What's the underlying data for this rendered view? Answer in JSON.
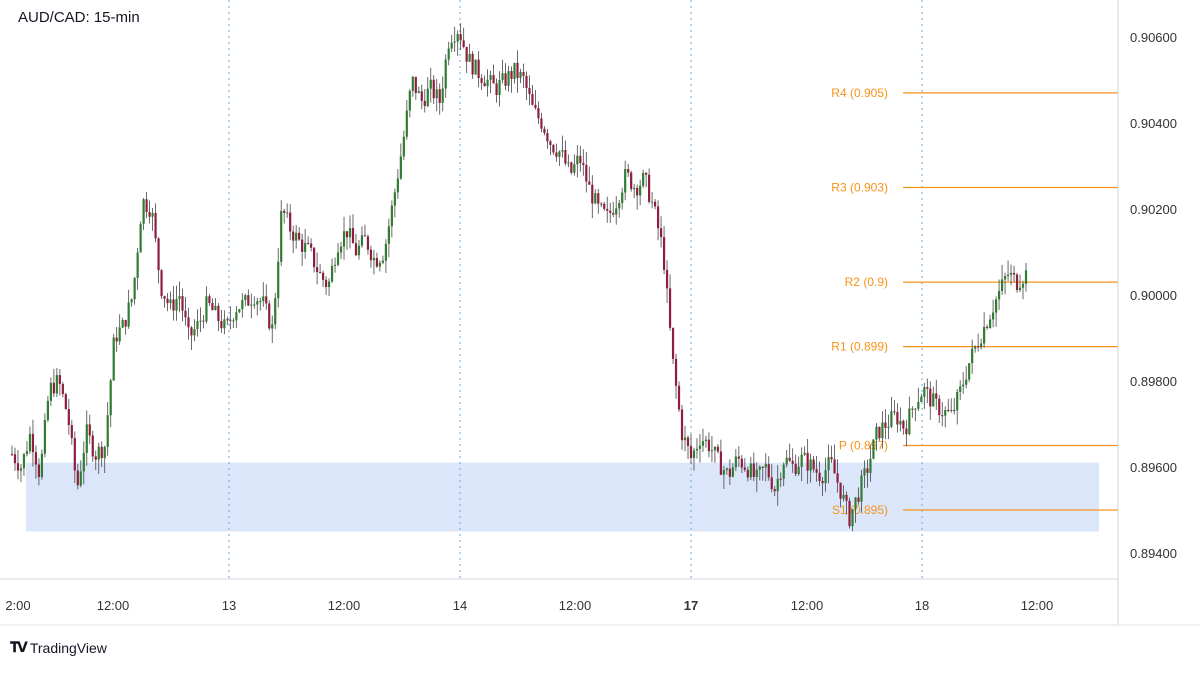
{
  "header": {
    "title": "AUD/CAD: 15-min"
  },
  "footer": {
    "brand": "TradingView"
  },
  "colors": {
    "level_line": "#f7931a",
    "level_label": "#f7931a",
    "support_zone": "#dce6fb",
    "candle_up": "#2e7d32",
    "candle_down": "#8e1f3c",
    "wick": "#444444",
    "day_separator": "#7fb6e6",
    "axis_text": "#333333"
  },
  "chart_data": {
    "type": "candlestick",
    "title": "AUD/CAD: 15-min",
    "ylim": [
      0.8935,
      0.9067
    ],
    "y_ticks": [
      "0.90600",
      "0.90400",
      "0.90200",
      "0.90000",
      "0.89800",
      "0.89600",
      "0.89400"
    ],
    "y_tick_values": [
      0.906,
      0.904,
      0.902,
      0.9,
      0.898,
      0.896,
      0.894
    ],
    "x_ticks": [
      {
        "label": "2:00",
        "bold": false
      },
      {
        "label": "12:00",
        "bold": false
      },
      {
        "label": "13",
        "bold": false
      },
      {
        "label": "12:00",
        "bold": false
      },
      {
        "label": "14",
        "bold": false
      },
      {
        "label": "12:00",
        "bold": false
      },
      {
        "label": "17",
        "bold": true
      },
      {
        "label": "12:00",
        "bold": false
      },
      {
        "label": "18",
        "bold": false
      },
      {
        "label": "12:00",
        "bold": false
      }
    ],
    "day_separators": [
      "13",
      "14",
      "17",
      "18"
    ],
    "levels": [
      {
        "label": "R4 (0.905)",
        "value": 0.9047
      },
      {
        "label": "R3 (0.903)",
        "value": 0.9025
      },
      {
        "label": "R2 (0.9)",
        "value": 0.9003
      },
      {
        "label": "R1 (0.899)",
        "value": 0.8988
      },
      {
        "label": "P (0.897)",
        "value": 0.8965
      },
      {
        "label": "S1 (0.895)",
        "value": 0.895
      }
    ],
    "support_zone": {
      "from": 0.8945,
      "to": 0.8961
    },
    "price_path": [
      0.8963,
      0.896,
      0.8968,
      0.8958,
      0.8978,
      0.898,
      0.8972,
      0.8955,
      0.8968,
      0.8963,
      0.8965,
      0.899,
      0.8993,
      0.9,
      0.9022,
      0.902,
      0.9002,
      0.8997,
      0.9,
      0.899,
      0.8993,
      0.8998,
      0.8995,
      0.8992,
      0.8997,
      0.8998,
      0.9,
      0.8998,
      0.8992,
      0.902,
      0.9015,
      0.9012,
      0.901,
      0.9005,
      0.9002,
      0.9012,
      0.9015,
      0.901,
      0.9013,
      0.9008,
      0.901,
      0.9022,
      0.9035,
      0.905,
      0.9045,
      0.9048,
      0.9045,
      0.906,
      0.9062,
      0.9055,
      0.9052,
      0.905,
      0.9048,
      0.905,
      0.9052,
      0.905,
      0.9043,
      0.904,
      0.9035,
      0.9033,
      0.9028,
      0.9032,
      0.9025,
      0.902,
      0.9018,
      0.9022,
      0.9028,
      0.9025,
      0.9027,
      0.902,
      0.901,
      0.8985,
      0.8968,
      0.8962,
      0.8967,
      0.8965,
      0.8961,
      0.8958,
      0.8962,
      0.896,
      0.8957,
      0.896,
      0.8955,
      0.8962,
      0.896,
      0.8962,
      0.896,
      0.8958,
      0.8961,
      0.8955,
      0.8948,
      0.8954,
      0.896,
      0.8968,
      0.897,
      0.8972,
      0.8969,
      0.8975,
      0.8978,
      0.8975,
      0.8973,
      0.8972,
      0.8978,
      0.8985,
      0.899,
      0.8995,
      0.9,
      0.9005,
      0.9003,
      0.9005
    ]
  }
}
